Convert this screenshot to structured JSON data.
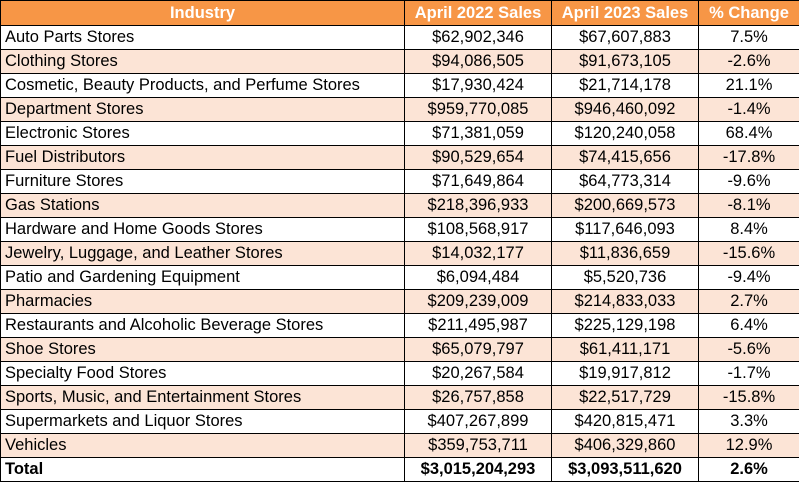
{
  "table": {
    "headers": [
      "Industry",
      "April 2022 Sales",
      "April 2023 Sales",
      "% Change"
    ],
    "rows": [
      {
        "industry": "Auto Parts Stores",
        "apr2022": "$62,902,346",
        "apr2023": "$67,607,883",
        "change": "7.5%"
      },
      {
        "industry": "Clothing Stores",
        "apr2022": "$94,086,505",
        "apr2023": "$91,673,105",
        "change": "-2.6%"
      },
      {
        "industry": "Cosmetic, Beauty Products, and Perfume Stores",
        "apr2022": "$17,930,424",
        "apr2023": "$21,714,178",
        "change": "21.1%"
      },
      {
        "industry": "Department Stores",
        "apr2022": "$959,770,085",
        "apr2023": "$946,460,092",
        "change": "-1.4%"
      },
      {
        "industry": "Electronic Stores",
        "apr2022": "$71,381,059",
        "apr2023": "$120,240,058",
        "change": "68.4%"
      },
      {
        "industry": "Fuel Distributors",
        "apr2022": "$90,529,654",
        "apr2023": "$74,415,656",
        "change": "-17.8%"
      },
      {
        "industry": "Furniture Stores",
        "apr2022": "$71,649,864",
        "apr2023": "$64,773,314",
        "change": "-9.6%"
      },
      {
        "industry": "Gas Stations",
        "apr2022": "$218,396,933",
        "apr2023": "$200,669,573",
        "change": "-8.1%"
      },
      {
        "industry": "Hardware and Home Goods Stores",
        "apr2022": "$108,568,917",
        "apr2023": "$117,646,093",
        "change": "8.4%"
      },
      {
        "industry": "Jewelry, Luggage, and Leather Stores",
        "apr2022": "$14,032,177",
        "apr2023": "$11,836,659",
        "change": "-15.6%"
      },
      {
        "industry": "Patio and Gardening Equipment",
        "apr2022": "$6,094,484",
        "apr2023": "$5,520,736",
        "change": "-9.4%"
      },
      {
        "industry": "Pharmacies",
        "apr2022": "$209,239,009",
        "apr2023": "$214,833,033",
        "change": "2.7%"
      },
      {
        "industry": "Restaurants and Alcoholic Beverage Stores",
        "apr2022": "$211,495,987",
        "apr2023": "$225,129,198",
        "change": "6.4%"
      },
      {
        "industry": "Shoe Stores",
        "apr2022": "$65,079,797",
        "apr2023": "$61,411,171",
        "change": "-5.6%"
      },
      {
        "industry": "Specialty Food Stores",
        "apr2022": "$20,267,584",
        "apr2023": "$19,917,812",
        "change": "-1.7%"
      },
      {
        "industry": "Sports, Music, and Entertainment Stores",
        "apr2022": "$26,757,858",
        "apr2023": "$22,517,729",
        "change": "-15.8%"
      },
      {
        "industry": "Supermarkets and Liquor Stores",
        "apr2022": "$407,267,899",
        "apr2023": "$420,815,471",
        "change": "3.3%"
      },
      {
        "industry": "Vehicles",
        "apr2022": "$359,753,711",
        "apr2023": "$406,329,860",
        "change": "12.9%"
      }
    ],
    "total": {
      "industry": "Total",
      "apr2022": "$3,015,204,293",
      "apr2023": "$3,093,511,620",
      "change": "2.6%"
    }
  },
  "colors": {
    "header_bg": "#f79646",
    "header_text": "#ffffff",
    "alt_row_bg": "#fce4d6",
    "row_bg": "#ffffff",
    "border": "#000000"
  }
}
